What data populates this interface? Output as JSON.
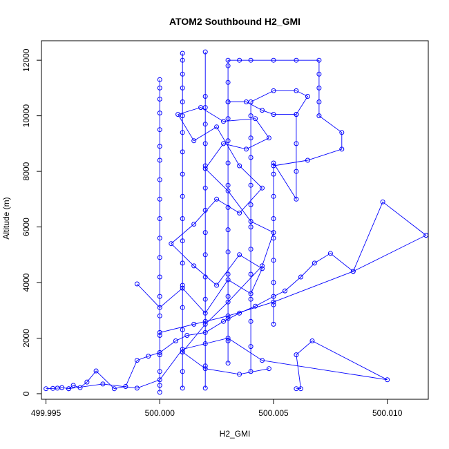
{
  "chart_data": {
    "type": "scatter",
    "title": "ATOM2 Southbound H2_GMI",
    "xlabel": "H2_GMI",
    "ylabel": "Altitude (m)",
    "xlim": [
      499.9948,
      500.0118
    ],
    "ylim": [
      -200,
      12700
    ],
    "x_ticks": [
      499.995,
      500.0,
      500.005,
      500.01
    ],
    "x_tick_labels": [
      "499.995",
      "500.000",
      "500.005",
      "500.010"
    ],
    "y_ticks": [
      0,
      2000,
      4000,
      6000,
      8000,
      10000,
      12000
    ],
    "y_tick_labels": [
      "0",
      "2000",
      "4000",
      "6000",
      "8000",
      "10000",
      "12000"
    ],
    "grid": false,
    "marker": "open-circle",
    "line_style": "connected",
    "color": "#0000ff",
    "series": [
      {
        "points": [
          [
            499.995,
            180
          ],
          [
            499.9953,
            190
          ],
          [
            499.9955,
            200
          ],
          [
            499.9957,
            220
          ],
          [
            499.996,
            180
          ],
          [
            499.9962,
            300
          ],
          [
            499.9965,
            220
          ],
          [
            499.9968,
            420
          ],
          [
            499.9972,
            820
          ],
          [
            499.998,
            180
          ],
          [
            499.9985,
            260
          ],
          [
            499.999,
            1200
          ],
          [
            499.9995,
            1350
          ],
          [
            500.0,
            1480
          ],
          [
            500.0007,
            1900
          ],
          [
            500.0012,
            2100
          ],
          [
            500.002,
            2200
          ],
          [
            500.0028,
            2600
          ],
          [
            500.0035,
            2900
          ],
          [
            500.0042,
            3150
          ],
          [
            500.005,
            3500
          ],
          [
            500.0055,
            3700
          ],
          [
            500.0062,
            4200
          ],
          [
            500.0068,
            4700
          ],
          [
            500.0075,
            5050
          ],
          [
            500.0085,
            4400
          ],
          [
            500.0098,
            6900
          ],
          [
            500.0117,
            5700
          ],
          [
            500.0085,
            4400
          ],
          [
            500.005,
            3300
          ],
          [
            500.003,
            2800
          ],
          [
            500.0015,
            2500
          ],
          [
            500.0,
            2200
          ]
        ]
      },
      {
        "points": [
          [
            500.0,
            50
          ],
          [
            500.0,
            300
          ],
          [
            500.0,
            800
          ],
          [
            500.0,
            1400
          ],
          [
            500.0,
            2100
          ],
          [
            500.0,
            2800
          ],
          [
            500.0,
            3500
          ],
          [
            500.0,
            4200
          ],
          [
            500.0,
            4900
          ],
          [
            500.0,
            5600
          ],
          [
            500.0,
            6300
          ],
          [
            500.0,
            7000
          ],
          [
            500.0,
            7700
          ],
          [
            500.0,
            8400
          ],
          [
            500.0,
            8900
          ],
          [
            500.0,
            9500
          ],
          [
            500.0,
            10100
          ],
          [
            500.0,
            10600
          ],
          [
            500.0,
            11000
          ],
          [
            500.0,
            11300
          ]
        ]
      },
      {
        "points": [
          [
            500.001,
            200
          ],
          [
            500.001,
            800
          ],
          [
            500.001,
            1500
          ],
          [
            500.001,
            2300
          ],
          [
            500.001,
            3100
          ],
          [
            500.001,
            3900
          ],
          [
            500.001,
            4700
          ],
          [
            500.001,
            5500
          ],
          [
            500.001,
            6300
          ],
          [
            500.001,
            7100
          ],
          [
            500.001,
            7900
          ],
          [
            500.001,
            8700
          ],
          [
            500.001,
            9400
          ],
          [
            500.001,
            10000
          ],
          [
            500.001,
            10500
          ],
          [
            500.001,
            11000
          ],
          [
            500.001,
            11500
          ],
          [
            500.001,
            12000
          ],
          [
            500.001,
            12250
          ]
        ]
      },
      {
        "points": [
          [
            500.002,
            200
          ],
          [
            500.002,
            1000
          ],
          [
            500.002,
            1800
          ],
          [
            500.002,
            2600
          ],
          [
            500.002,
            3400
          ],
          [
            500.002,
            4200
          ],
          [
            500.002,
            5000
          ],
          [
            500.002,
            5800
          ],
          [
            500.002,
            6600
          ],
          [
            500.002,
            7400
          ],
          [
            500.002,
            8200
          ],
          [
            500.002,
            9000
          ],
          [
            500.002,
            9700
          ],
          [
            500.002,
            10300
          ],
          [
            500.002,
            10700
          ],
          [
            500.002,
            12300
          ]
        ]
      },
      {
        "points": [
          [
            500.003,
            1100
          ],
          [
            500.003,
            1900
          ],
          [
            500.003,
            2700
          ],
          [
            500.003,
            3500
          ],
          [
            500.003,
            4300
          ],
          [
            500.003,
            5100
          ],
          [
            500.003,
            5900
          ],
          [
            500.003,
            6700
          ],
          [
            500.003,
            7500
          ],
          [
            500.003,
            8300
          ],
          [
            500.003,
            9100
          ],
          [
            500.003,
            9900
          ],
          [
            500.003,
            10500
          ],
          [
            500.003,
            11200
          ],
          [
            500.003,
            11800
          ],
          [
            500.003,
            12000
          ],
          [
            500.0035,
            12000
          ],
          [
            500.004,
            12000
          ],
          [
            500.005,
            12000
          ],
          [
            500.006,
            12000
          ],
          [
            500.007,
            12000
          ],
          [
            500.007,
            11500
          ],
          [
            500.007,
            11000
          ],
          [
            500.007,
            10500
          ],
          [
            500.007,
            10000
          ],
          [
            500.008,
            9400
          ],
          [
            500.008,
            8800
          ],
          [
            500.0065,
            8400
          ],
          [
            500.005,
            8200
          ]
        ]
      },
      {
        "points": [
          [
            500.004,
            800
          ],
          [
            500.004,
            1700
          ],
          [
            500.004,
            2600
          ],
          [
            500.004,
            3400
          ],
          [
            500.004,
            4300
          ],
          [
            500.004,
            5200
          ],
          [
            500.004,
            6000
          ],
          [
            500.004,
            6800
          ],
          [
            500.004,
            7500
          ],
          [
            500.004,
            8500
          ],
          [
            500.004,
            9200
          ],
          [
            500.004,
            10000
          ],
          [
            500.004,
            10500
          ],
          [
            500.005,
            10900
          ],
          [
            500.006,
            10900
          ],
          [
            500.0065,
            10700
          ],
          [
            500.006,
            10050
          ],
          [
            500.005,
            10050
          ],
          [
            500.0045,
            10200
          ],
          [
            500.0038,
            10500
          ],
          [
            500.003,
            10500
          ]
        ]
      },
      {
        "points": [
          [
            500.005,
            2500
          ],
          [
            500.005,
            3200
          ],
          [
            500.005,
            4000
          ],
          [
            500.005,
            4800
          ],
          [
            500.005,
            5600
          ],
          [
            500.005,
            6300
          ],
          [
            500.005,
            7100
          ],
          [
            500.005,
            7900
          ],
          [
            500.005,
            8300
          ],
          [
            500.006,
            7000
          ],
          [
            500.006,
            8000
          ],
          [
            500.006,
            9000
          ],
          [
            500.006,
            10050
          ]
        ]
      },
      {
        "points": [
          [
            500.006,
            180
          ],
          [
            500.0062,
            180
          ],
          [
            500.006,
            1400
          ],
          [
            500.0067,
            1900
          ],
          [
            500.01,
            500
          ],
          [
            500.0045,
            1200
          ],
          [
            500.003,
            2000
          ],
          [
            500.001,
            1600
          ],
          [
            500.0,
            500
          ],
          [
            499.999,
            200
          ],
          [
            499.9975,
            350
          ],
          [
            499.996,
            180
          ]
        ]
      },
      {
        "points": [
          [
            499.999,
            3950
          ],
          [
            500.0,
            3100
          ],
          [
            500.001,
            3800
          ],
          [
            500.002,
            2900
          ],
          [
            500.003,
            4100
          ],
          [
            500.004,
            3600
          ],
          [
            500.0045,
            4500
          ],
          [
            500.0035,
            5000
          ],
          [
            500.0025,
            3900
          ],
          [
            500.0015,
            4600
          ],
          [
            500.0005,
            5400
          ],
          [
            500.0015,
            6100
          ],
          [
            500.0025,
            7000
          ],
          [
            500.0035,
            6500
          ],
          [
            500.0045,
            7400
          ],
          [
            500.0035,
            8200
          ],
          [
            500.0025,
            9600
          ],
          [
            500.0015,
            9100
          ],
          [
            500.0008,
            10050
          ],
          [
            500.0018,
            10300
          ],
          [
            500.0028,
            9800
          ],
          [
            500.0042,
            9900
          ],
          [
            500.0048,
            9200
          ],
          [
            500.0038,
            8800
          ],
          [
            500.0028,
            9000
          ],
          [
            500.002,
            8100
          ],
          [
            500.003,
            7300
          ],
          [
            500.004,
            6200
          ],
          [
            500.005,
            5800
          ],
          [
            500.0045,
            4600
          ],
          [
            500.003,
            3300
          ],
          [
            500.002,
            2500
          ],
          [
            500.001,
            1500
          ],
          [
            500.002,
            900
          ],
          [
            500.0035,
            700
          ],
          [
            500.0048,
            900
          ]
        ]
      }
    ]
  }
}
